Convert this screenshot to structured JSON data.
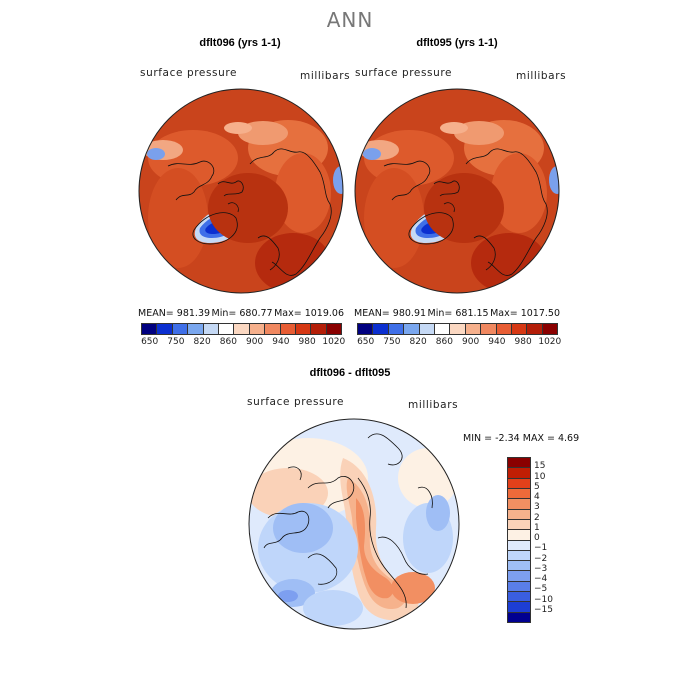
{
  "title": "ANN",
  "panels": [
    {
      "title": "dflt096 (yrs 1-1)",
      "field_label": "surface pressure",
      "units": "millibars",
      "stats": {
        "mean_label": "MEAN=",
        "mean": "981.39",
        "min_label": "Min=",
        "min": "680.77",
        "max_label": "Max=",
        "max": "1019.06"
      }
    },
    {
      "title": "dflt095 (yrs 1-1)",
      "field_label": "surface pressure",
      "units": "millibars",
      "stats": {
        "mean_label": "MEAN=",
        "mean": "980.91",
        "min_label": "Min=",
        "min": "681.15",
        "max_label": "Max=",
        "max": "1017.50"
      }
    }
  ],
  "top_colorbar": {
    "colors": [
      "#000080",
      "#0b2fd0",
      "#3f6fe8",
      "#7aa7ef",
      "#c5d9f5",
      "#ffffff",
      "#fbd8c2",
      "#f6b08c",
      "#f08860",
      "#e85d34",
      "#d63814",
      "#b41e08",
      "#8a0000"
    ],
    "tick_labels": [
      "650",
      "750",
      "820",
      "860",
      "900",
      "940",
      "980",
      "1020"
    ]
  },
  "diff_panel": {
    "title": "dflt096 - dflt095",
    "field_label": "surface pressure",
    "units": "millibars",
    "stats": {
      "min_label": "MIN =",
      "min": "-2.34",
      "max_label": "MAX =",
      "max": "4.69"
    }
  },
  "diff_colorbar": {
    "colors": [
      "#8a0000",
      "#c01e04",
      "#e2401a",
      "#ee6a3a",
      "#f28f62",
      "#f6b28c",
      "#fad2b8",
      "#fdf1e4",
      "#dfeafc",
      "#bfd6fa",
      "#9fbef5",
      "#7d9ff0",
      "#5a7ee8",
      "#3a5ee0",
      "#1d3ed4",
      "#000090"
    ],
    "labels": [
      "15",
      "10",
      "5",
      "4",
      "3",
      "2",
      "1",
      "0",
      "−1",
      "−2",
      "−3",
      "−4",
      "−5",
      "−10",
      "−15"
    ]
  },
  "map_colors": {
    "warm_dark": "#c33a16",
    "warm_mid": "#dd5a2c",
    "warm_light": "#f09a70",
    "cool_light": "#c9daf6",
    "cool_mid": "#7aa0ec",
    "cool_dark": "#1a3fd0"
  }
}
